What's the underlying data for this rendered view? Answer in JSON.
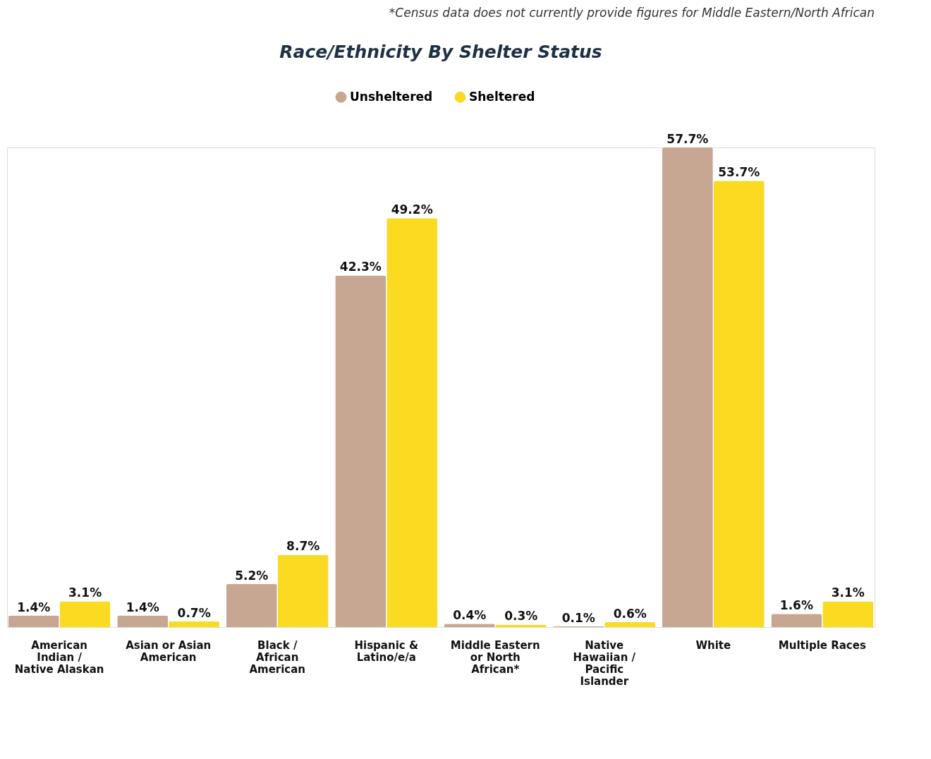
{
  "chart_data": {
    "type": "bar",
    "title": "Race/Ethnicity By Shelter Status",
    "annotations": [
      "*Census data does not currently provide figures for Middle Eastern/North African"
    ],
    "categories": [
      "American Indian / Native Alaskan",
      "Asian or Asian American",
      "Black / African American",
      "Hispanic & Latino/e/a",
      "Middle Eastern or North African*",
      "Native Hawaiian / Pacific Islander",
      "White",
      "Multiple Races"
    ],
    "series": [
      {
        "name": "Unsheltered",
        "color": "#c8a792",
        "values": [
          1.4,
          1.4,
          5.2,
          42.3,
          0.4,
          0.1,
          57.7,
          1.6
        ],
        "value_labels": [
          "1.4%",
          "1.4%",
          "5.2%",
          "42.3%",
          "0.4%",
          "0.1%",
          "57.7%",
          "1.6%"
        ]
      },
      {
        "name": "Sheltered",
        "color": "#fbdb22",
        "values": [
          3.1,
          0.7,
          8.7,
          49.2,
          0.3,
          0.6,
          53.7,
          3.1
        ],
        "value_labels": [
          "3.1%",
          "0.7%",
          "8.7%",
          "49.2%",
          "0.3%",
          "0.6%",
          "53.7%",
          "3.1%"
        ]
      }
    ],
    "tick_labels": "x",
    "grid": false,
    "legend": "top"
  }
}
